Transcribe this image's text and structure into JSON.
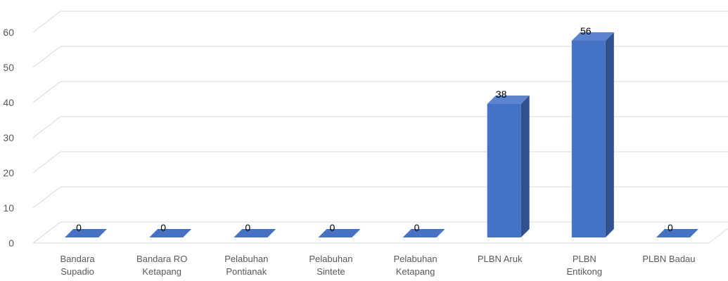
{
  "chart_data": {
    "type": "bar",
    "style": "3d-column",
    "title": "",
    "xlabel": "",
    "ylabel": "",
    "ylim": [
      0,
      60
    ],
    "yticks": [
      0,
      10,
      20,
      30,
      40,
      50,
      60
    ],
    "grid": true,
    "legend": "none",
    "categories": [
      [
        "Bandara",
        "Supadio"
      ],
      [
        "Bandara RO",
        "Ketapang"
      ],
      [
        "Pelabuhan",
        "Pontianak"
      ],
      [
        "Pelabuhan",
        "Sintete"
      ],
      [
        "Pelabuhan",
        "Ketapang"
      ],
      [
        "PLBN Aruk"
      ],
      [
        "PLBN",
        "Entikong"
      ],
      [
        "PLBN Badau"
      ]
    ],
    "values": [
      0,
      0,
      0,
      0,
      0,
      38,
      56,
      0
    ],
    "colors": {
      "bar_front": "#4472c4",
      "bar_side": "#2f528f",
      "bar_top": "#5b84d0",
      "grid": "#d9d9d9",
      "tick_text": "#595959"
    }
  }
}
